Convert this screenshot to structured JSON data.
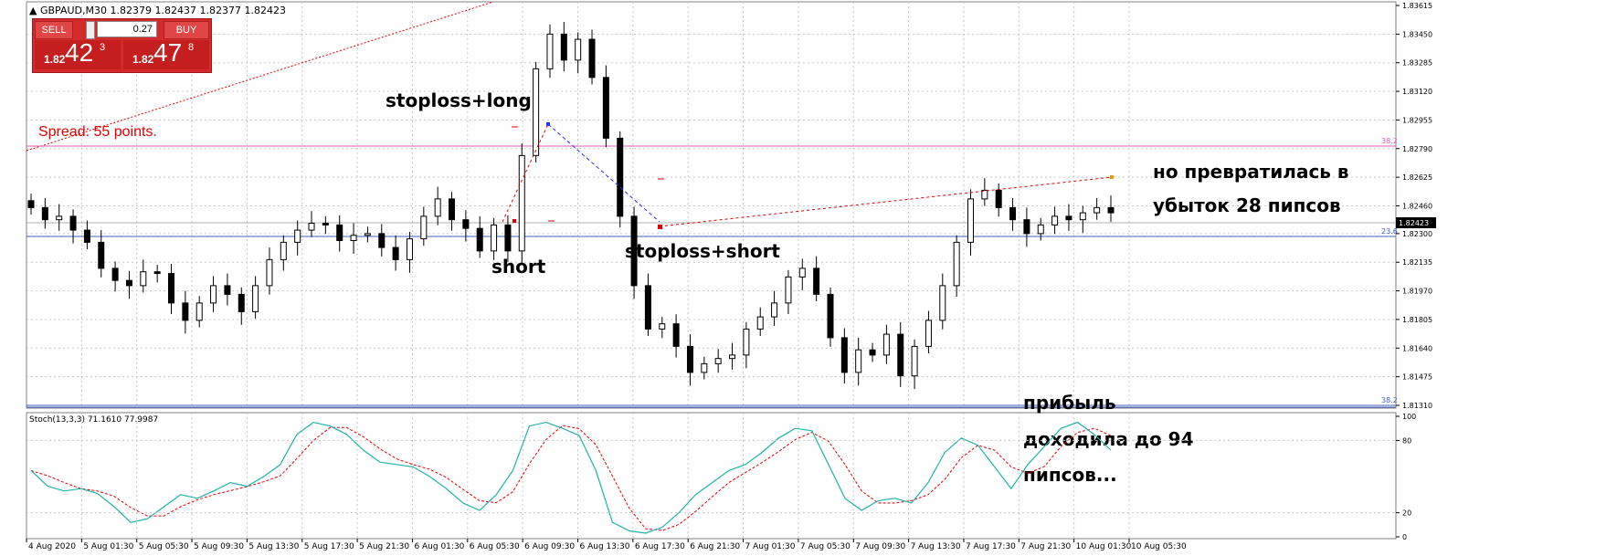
{
  "window": {
    "symbol_header": "GBPAUD,M30  1.82379 1.82437 1.82377 1.82423"
  },
  "trade_panel": {
    "sell_label": "SELL",
    "buy_label": "BUY",
    "lot_value": "0.27",
    "sell_prefix": "1.82",
    "sell_big": "42",
    "sell_sup": "3",
    "buy_prefix": "1.82",
    "buy_big": "47",
    "buy_sup": "8"
  },
  "annotations": {
    "spread": "Spread: 55 points.",
    "stoploss_long": "stoploss+long",
    "short": "short",
    "stoploss_short": "stoploss+short",
    "loss_line1": "но превратилась в",
    "loss_line2": "убыток 28 пипсов",
    "profit_line1": "прибыль",
    "profit_line2": "доходила до 94",
    "profit_line3": "пипсов..."
  },
  "price_axis": [
    "1.83615",
    "1.83450",
    "1.83285",
    "1.83120",
    "1.82955",
    "1.82790",
    "1.82625",
    "1.82460",
    "1.82300",
    "1.82135",
    "1.81970",
    "1.81805",
    "1.81640",
    "1.81475",
    "1.81310"
  ],
  "current_price": "1.82423",
  "fib_labels": {
    "upper": "38.2",
    "middle": "23.6",
    "lower": "38.2"
  },
  "indicator": {
    "label": "Stoch(13,3,3) 71.1610 77.9987",
    "axis": [
      "100",
      "80",
      "20",
      "0"
    ]
  },
  "time_axis": [
    "4 Aug 2020",
    "5 Aug 01:30",
    "5 Aug 05:30",
    "5 Aug 09:30",
    "5 Aug 13:30",
    "5 Aug 17:30",
    "5 Aug 21:30",
    "6 Aug 01:30",
    "6 Aug 05:30",
    "6 Aug 09:30",
    "6 Aug 13:30",
    "6 Aug 17:30",
    "6 Aug 21:30",
    "7 Aug 01:30",
    "7 Aug 05:30",
    "7 Aug 09:30",
    "7 Aug 13:30",
    "7 Aug 17:30",
    "7 Aug 21:30",
    "10 Aug 01:30",
    "10 Aug 05:30"
  ],
  "colors": {
    "candle": "#000000",
    "grid": "#c8c8c8",
    "fib_pink": "#e05cb0",
    "fib_blue": "#4060c0",
    "annotation_red": "#e00000",
    "stoch_main": "#20b2aa",
    "stoch_signal": "#e00000"
  },
  "chart_data": {
    "type": "candlestick",
    "close_series": [
      1.8245,
      1.8238,
      1.824,
      1.8232,
      1.8225,
      1.821,
      1.8203,
      1.82,
      1.8208,
      1.8207,
      1.819,
      1.818,
      1.819,
      1.82,
      1.8195,
      1.8185,
      1.82,
      1.8215,
      1.8225,
      1.8232,
      1.8236,
      1.8235,
      1.8226,
      1.8229,
      1.823,
      1.8222,
      1.8215,
      1.8227,
      1.824,
      1.825,
      1.8238,
      1.8233,
      1.822,
      1.8235,
      1.822,
      1.8275,
      1.8325,
      1.8345,
      1.833,
      1.8342,
      1.832,
      1.8285,
      1.824,
      1.82,
      1.8175,
      1.8178,
      1.8165,
      1.815,
      1.8155,
      1.8158,
      1.816,
      1.8175,
      1.8182,
      1.819,
      1.8205,
      1.821,
      1.8195,
      1.817,
      1.815,
      1.8163,
      1.816,
      1.8172,
      1.8148,
      1.8165,
      1.818,
      1.82,
      1.8225,
      1.825,
      1.8255,
      1.8245,
      1.8238,
      1.823,
      1.8235,
      1.824,
      1.8238,
      1.8242,
      1.8245,
      1.8242
    ],
    "stoch_main": [
      55,
      42,
      38,
      40,
      36,
      25,
      12,
      15,
      25,
      35,
      32,
      38,
      45,
      42,
      50,
      60,
      85,
      95,
      92,
      85,
      72,
      62,
      60,
      58,
      50,
      40,
      28,
      22,
      35,
      55,
      92,
      95,
      90,
      84,
      55,
      12,
      5,
      3,
      8,
      20,
      35,
      45,
      55,
      60,
      70,
      82,
      90,
      88,
      60,
      32,
      22,
      30,
      32,
      28,
      45,
      70,
      82,
      76,
      58,
      40,
      60,
      75,
      90,
      95,
      85,
      72
    ]
  }
}
